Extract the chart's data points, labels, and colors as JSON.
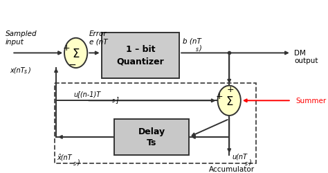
{
  "bg_color": "#ffffff",
  "fig_width": 4.74,
  "fig_height": 2.51,
  "dpi": 100,
  "summer_fill": "#ffffc8",
  "box_fill": "#cccccc",
  "box_fill_delay": "#c8c8c8",
  "line_color": "#333333",
  "red_color": "#ff0000",
  "dashed_color": "#444444",
  "font_size_box_title": 9,
  "font_size_label": 7.5,
  "font_size_small": 7,
  "font_size_sigma": 12,
  "font_size_pm": 8,
  "labels": {
    "sampled_input": "Sampled\ninput",
    "x_nTs": "x(nT",
    "error": "Error\ne (nT",
    "b_nTs": "b (nT",
    "dm_output": "DM\noutput",
    "u_n1Ts": "u[(n-1)T",
    "xhat_nTs": "x̂(nT",
    "u_nTs": "u(nT",
    "accumulator": "Accumulator",
    "summer": "Summer",
    "sub_s": "s",
    "quantizer1": "1 – bit",
    "quantizer2": "Quantizer",
    "delay1": "Delay",
    "delay2": "Ts"
  }
}
